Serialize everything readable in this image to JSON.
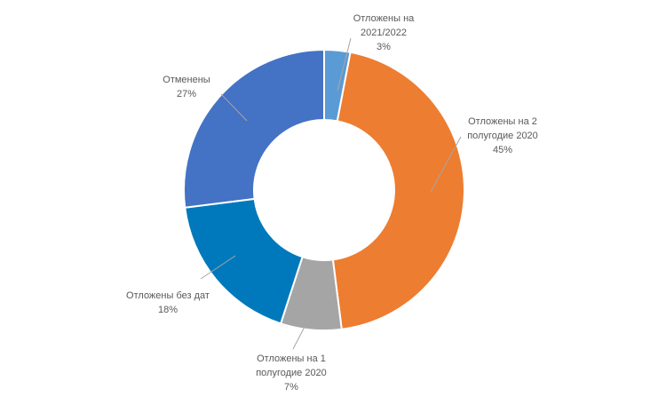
{
  "chart_data": {
    "type": "pie",
    "title": "",
    "legend": "none",
    "slices": [
      {
        "name_lines": [
          "Отложены на",
          "2021/2022"
        ],
        "name": "Отложены на 2021/2022",
        "value": 3,
        "value_label": "3%",
        "color": "#5B9BD5"
      },
      {
        "name_lines": [
          "Отложены на 2",
          "полугодие 2020"
        ],
        "name": "Отложены на 2 полугодие 2020",
        "value": 45,
        "value_label": "45%",
        "color": "#ED7D31"
      },
      {
        "name_lines": [
          "Отложены на 1",
          "полугодие 2020"
        ],
        "name": "Отложены на 1 полугодие 2020",
        "value": 7,
        "value_label": "7%",
        "color": "#A5A5A5"
      },
      {
        "name_lines": [
          "Отложены без дат"
        ],
        "name": "Отложены без дат",
        "value": 18,
        "value_label": "18%",
        "color": "#0079BC"
      },
      {
        "name_lines": [
          "Отменены"
        ],
        "name": "Отменены",
        "value": 27,
        "value_label": "27%",
        "color": "#4472C4"
      }
    ]
  }
}
